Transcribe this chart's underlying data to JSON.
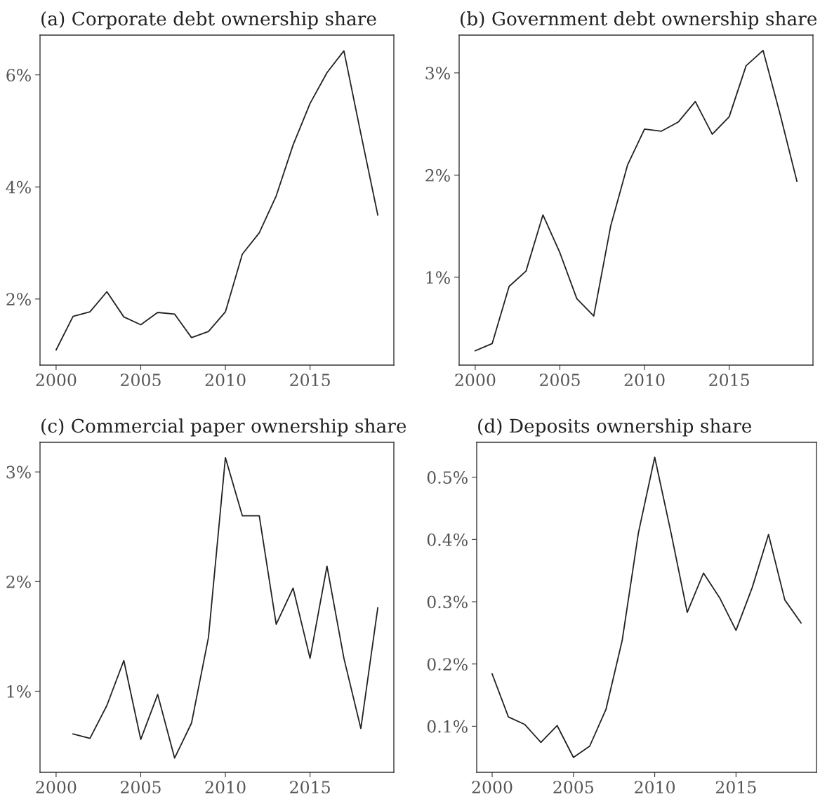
{
  "chart_data": [
    {
      "type": "line",
      "title": "(a) Corporate debt ownership share",
      "x": [
        2000,
        2001,
        2002,
        2003,
        2004,
        2005,
        2006,
        2007,
        2008,
        2009,
        2010,
        2011,
        2012,
        2013,
        2014,
        2015,
        2016,
        2017,
        2018,
        2019
      ],
      "series": [
        {
          "color": "#222222",
          "values": [
            1.09,
            1.69,
            1.77,
            2.13,
            1.68,
            1.54,
            1.76,
            1.73,
            1.31,
            1.42,
            1.77,
            2.8,
            3.18,
            3.84,
            4.75,
            5.49,
            6.04,
            6.43,
            4.95,
            3.5
          ]
        }
      ],
      "xlim": [
        1999.05,
        2019.95
      ],
      "xticks": [
        2000,
        2005,
        2010,
        2015
      ],
      "ylim": [
        0.82,
        6.71
      ],
      "yticks": [
        {
          "value": 2,
          "label": "2%"
        },
        {
          "value": 4,
          "label": "4%"
        },
        {
          "value": 6,
          "label": "6%"
        }
      ],
      "grid": false,
      "legend": false
    },
    {
      "type": "line",
      "title": "(b) Government debt ownership share",
      "x": [
        2000,
        2001,
        2002,
        2003,
        2004,
        2005,
        2006,
        2007,
        2008,
        2009,
        2010,
        2011,
        2012,
        2013,
        2014,
        2015,
        2016,
        2017,
        2018,
        2019
      ],
      "series": [
        {
          "color": "#222222",
          "values": [
            0.28,
            0.35,
            0.91,
            1.06,
            1.61,
            1.24,
            0.79,
            0.62,
            1.5,
            2.1,
            2.45,
            2.43,
            2.52,
            2.72,
            2.4,
            2.57,
            3.07,
            3.22,
            2.6,
            1.94
          ]
        }
      ],
      "xlim": [
        1999.05,
        2019.95
      ],
      "xticks": [
        2000,
        2005,
        2010,
        2015
      ],
      "ylim": [
        0.14,
        3.37
      ],
      "yticks": [
        {
          "value": 1,
          "label": "1%"
        },
        {
          "value": 2,
          "label": "2%"
        },
        {
          "value": 3,
          "label": "3%"
        }
      ],
      "grid": false,
      "legend": false
    },
    {
      "type": "line",
      "title": "(c) Commercial paper ownership share",
      "x": [
        2001,
        2002,
        2003,
        2004,
        2005,
        2006,
        2007,
        2008,
        2009,
        2010,
        2011,
        2012,
        2013,
        2014,
        2015,
        2016,
        2017,
        2018,
        2019
      ],
      "series": [
        {
          "color": "#222222",
          "values": [
            0.61,
            0.57,
            0.87,
            1.28,
            0.56,
            0.97,
            0.39,
            0.71,
            1.49,
            3.13,
            2.6,
            2.6,
            1.61,
            1.94,
            1.3,
            2.14,
            1.3,
            0.66,
            1.76
          ]
        }
      ],
      "xlim": [
        1999.05,
        2019.95
      ],
      "xticks": [
        2000,
        2005,
        2010,
        2015
      ],
      "ylim": [
        0.26,
        3.27
      ],
      "yticks": [
        {
          "value": 1,
          "label": "1%"
        },
        {
          "value": 2,
          "label": "2%"
        },
        {
          "value": 3,
          "label": "3%"
        }
      ],
      "grid": false,
      "legend": false
    },
    {
      "type": "line",
      "title": "(d) Deposits ownership share",
      "x": [
        2000,
        2001,
        2002,
        2003,
        2004,
        2005,
        2006,
        2007,
        2008,
        2009,
        2010,
        2011,
        2012,
        2013,
        2014,
        2015,
        2016,
        2017,
        2018,
        2019
      ],
      "series": [
        {
          "color": "#222222",
          "values": [
            0.184,
            0.115,
            0.103,
            0.074,
            0.101,
            0.05,
            0.068,
            0.127,
            0.238,
            0.411,
            0.532,
            0.411,
            0.283,
            0.346,
            0.306,
            0.254,
            0.323,
            0.408,
            0.303,
            0.266
          ]
        }
      ],
      "xlim": [
        1999.05,
        2019.95
      ],
      "xticks": [
        2000,
        2005,
        2010,
        2015
      ],
      "ylim": [
        0.026,
        0.556
      ],
      "yticks": [
        {
          "value": 0.1,
          "label": "0.1%"
        },
        {
          "value": 0.2,
          "label": "0.2%"
        },
        {
          "value": 0.3,
          "label": "0.3%"
        },
        {
          "value": 0.4,
          "label": "0.4%"
        },
        {
          "value": 0.5,
          "label": "0.5%"
        }
      ],
      "grid": false,
      "legend": false
    }
  ]
}
